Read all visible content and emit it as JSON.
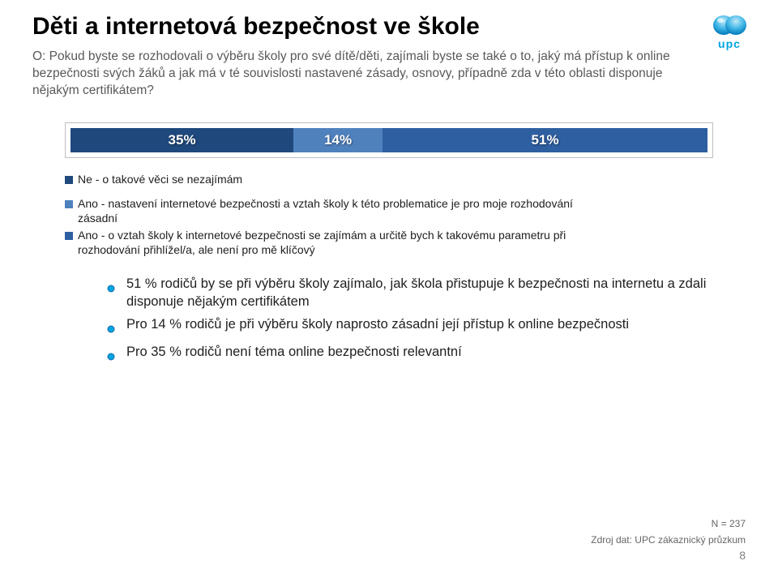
{
  "logo": {
    "text": "upc",
    "gradient_top": "#7fd4f1",
    "gradient_bottom": "#008fd5",
    "text_color": "#00a5e1"
  },
  "title": "Děti a internetová bezpečnost ve škole",
  "question": "O: Pokud byste se rozhodovali o výběru školy pro své dítě/děti, zajímali byste se také o to, jaký má přístup k online bezpečnosti svých žáků a jak má v té souvislosti nastavené zásady, osnovy, případně zda v této oblasti disponuje nějakým certifikátem?",
  "chart": {
    "type": "stacked-bar-100",
    "background": "#ffffff",
    "border_color": "#bfbfbf",
    "label_color": "#ffffff",
    "segments": [
      {
        "label": "35%",
        "value": 35,
        "color": "#1f497d"
      },
      {
        "label": "14%",
        "value": 14,
        "color": "#4f81bd"
      },
      {
        "label": "51%",
        "value": 51,
        "color": "#2e5fa1"
      }
    ]
  },
  "legend": {
    "swatch_size": 10,
    "items": [
      {
        "color": "#1f497d",
        "text": "Ne - o takové věci se nezajímám",
        "sub": ""
      },
      {
        "color": "#4f81bd",
        "text": "Ano - nastavení internetové bezpečnosti a vztah školy k této problematice je pro moje rozhodování",
        "sub": "zásadní"
      },
      {
        "color": "#2e5fa1",
        "text": "Ano - o vztah školy k internetové bezpečnosti se zajímám a určitě bych k takovému parametru při",
        "sub": "rozhodování přihlížel/a, ale není pro mě klíčový"
      }
    ]
  },
  "bullets": {
    "dot_fill": "#00a5e1",
    "dot_stroke": "#1a6aa8",
    "items": [
      "51 % rodičů by se při výběru školy zajímalo, jak škola přistupuje k bezpečnosti na internetu a zdali disponuje nějakým certifikátem",
      "Pro 14 % rodičů je při výběru školy naprosto zásadní její přístup k online bezpečnosti",
      "Pro 35 % rodičů není téma online bezpečnosti relevantní"
    ]
  },
  "footer": {
    "n": "N = 237",
    "source": "Zdroj dat: UPC zákaznický průzkum",
    "page": "8"
  }
}
